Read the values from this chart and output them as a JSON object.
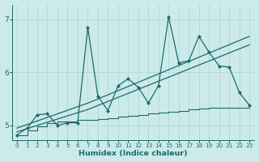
{
  "xlabel": "Humidex (Indice chaleur)",
  "bg_color": "#cceaea",
  "line_color": "#1a6b6b",
  "grid_color": "#aad4d4",
  "xlim": [
    -0.5,
    23.5
  ],
  "ylim": [
    4.72,
    7.28
  ],
  "yticks": [
    5,
    6,
    7
  ],
  "ytick_labels": [
    "5",
    "6",
    "7"
  ],
  "xtick_labels": [
    "0",
    "1",
    "2",
    "3",
    "4",
    "5",
    "6",
    "7",
    "8",
    "9",
    "10",
    "11",
    "12",
    "13",
    "14",
    "15",
    "16",
    "17",
    "18",
    "19",
    "20",
    "21",
    "22",
    "23"
  ],
  "line1_x": [
    0,
    1,
    2,
    3,
    4,
    5,
    6,
    7,
    8,
    9,
    10,
    11,
    12,
    13,
    14,
    15,
    16,
    17,
    18,
    19,
    20,
    21,
    22,
    23
  ],
  "line1_y": [
    4.82,
    4.95,
    5.2,
    5.22,
    5.0,
    5.05,
    5.05,
    6.85,
    5.55,
    5.28,
    5.75,
    5.88,
    5.72,
    5.42,
    5.75,
    7.05,
    6.18,
    6.22,
    6.68,
    6.38,
    6.12,
    6.1,
    5.62,
    5.38
  ],
  "line2_x": [
    0,
    7,
    23
  ],
  "line2_y": [
    4.88,
    5.3,
    6.52
  ],
  "line3_x": [
    0,
    7,
    23
  ],
  "line3_y": [
    4.95,
    5.42,
    6.68
  ],
  "line4_x": [
    0,
    1,
    2,
    3,
    4,
    5,
    6,
    7,
    8,
    9,
    10,
    11,
    12,
    13,
    14,
    15,
    16,
    17,
    18,
    19,
    20,
    21,
    22,
    23
  ],
  "line4_y": [
    4.82,
    4.9,
    4.98,
    5.05,
    5.07,
    5.08,
    5.1,
    5.1,
    5.12,
    5.14,
    5.16,
    5.18,
    5.2,
    5.22,
    5.24,
    5.26,
    5.28,
    5.3,
    5.32,
    5.34,
    5.34,
    5.34,
    5.34,
    5.34
  ]
}
